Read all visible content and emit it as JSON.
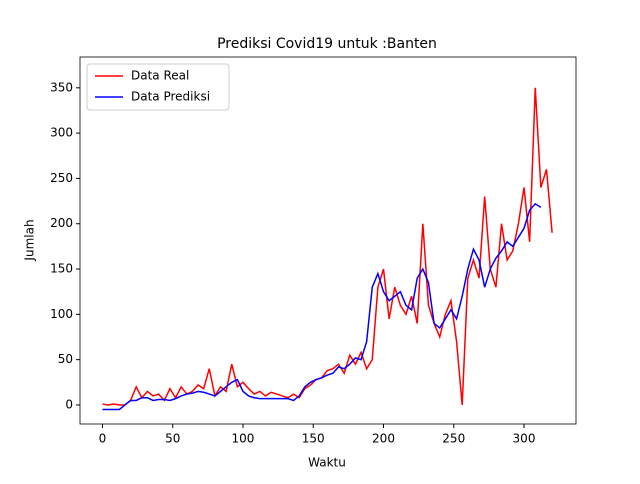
{
  "chart_data": {
    "type": "line",
    "title": "Prediksi Covid19 untuk :Banten",
    "x_label": "Waktu",
    "y_label": "Jumlah",
    "x": [
      0,
      4,
      8,
      12,
      16,
      20,
      24,
      28,
      32,
      36,
      40,
      44,
      48,
      52,
      56,
      60,
      64,
      68,
      72,
      76,
      80,
      84,
      88,
      92,
      96,
      100,
      104,
      108,
      112,
      116,
      120,
      124,
      128,
      132,
      136,
      140,
      144,
      148,
      152,
      156,
      160,
      164,
      168,
      172,
      176,
      180,
      184,
      188,
      192,
      196,
      200,
      204,
      208,
      212,
      216,
      220,
      224,
      228,
      232,
      236,
      240,
      244,
      248,
      252,
      256,
      260,
      264,
      268,
      272,
      276,
      280,
      284,
      288,
      292,
      296,
      300,
      304,
      308,
      312,
      316,
      320
    ],
    "series": [
      {
        "name": "Data Real",
        "color": "#ff0000",
        "values": [
          1,
          0,
          1,
          0,
          0,
          5,
          20,
          8,
          15,
          10,
          12,
          5,
          18,
          8,
          20,
          12,
          15,
          22,
          18,
          40,
          10,
          20,
          15,
          45,
          20,
          25,
          18,
          12,
          15,
          10,
          14,
          12,
          10,
          8,
          12,
          8,
          18,
          22,
          28,
          30,
          38,
          40,
          45,
          35,
          55,
          45,
          58,
          40,
          50,
          130,
          150,
          95,
          130,
          110,
          100,
          120,
          90,
          200,
          110,
          90,
          75,
          100,
          115,
          70,
          0,
          140,
          160,
          140,
          230,
          150,
          130,
          200,
          160,
          170,
          200,
          240,
          180,
          350,
          240,
          260,
          190
        ]
      },
      {
        "name": "Data Prediksi",
        "color": "#0000ff",
        "values": [
          -5,
          -5,
          -5,
          -5,
          0,
          5,
          5,
          8,
          8,
          5,
          6,
          6,
          5,
          7,
          10,
          12,
          13,
          15,
          14,
          12,
          10,
          15,
          20,
          25,
          28,
          15,
          10,
          8,
          7,
          7,
          7,
          7,
          7,
          7,
          5,
          10,
          20,
          25,
          28,
          30,
          33,
          35,
          42,
          40,
          45,
          52,
          50,
          70,
          130,
          145,
          125,
          115,
          120,
          125,
          110,
          105,
          140,
          150,
          135,
          90,
          85,
          95,
          105,
          95,
          120,
          150,
          172,
          160,
          130,
          150,
          162,
          170,
          180,
          175,
          185,
          195,
          215,
          222,
          218,
          null,
          null
        ]
      }
    ],
    "xlim": [
      -16,
      337
    ],
    "ylim": [
      -21,
      384
    ],
    "xticks": [
      0,
      50,
      100,
      150,
      200,
      250,
      300
    ],
    "yticks": [
      0,
      50,
      100,
      150,
      200,
      250,
      300,
      350
    ],
    "legend": "upper left"
  }
}
